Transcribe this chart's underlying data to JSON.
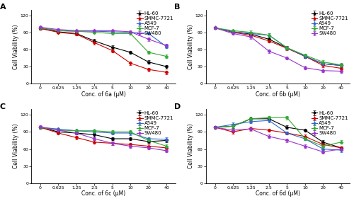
{
  "x_labels": [
    "0",
    "0.625",
    "1.25",
    "2.5",
    "5",
    "10",
    "20",
    "40"
  ],
  "ylim": [
    0,
    130
  ],
  "yticks": [
    0,
    30,
    60,
    90,
    120
  ],
  "cell_lines": [
    "HL-60",
    "SMMC-7721",
    "A549",
    "MCF-7",
    "SW480"
  ],
  "colors": [
    "#000000",
    "#cc0000",
    "#3366cc",
    "#33aa33",
    "#9933cc"
  ],
  "marker": "D",
  "panels": [
    {
      "label": "A",
      "xlabel": "Conc. of 6a (μM)",
      "data": {
        "HL-60": [
          97,
          91,
          88,
          75,
          64,
          55,
          38,
          30
        ],
        "SMMC-7721": [
          97,
          90,
          87,
          72,
          58,
          36,
          25,
          20
        ],
        "A549": [
          98,
          93,
          92,
          92,
          91,
          90,
          88,
          65
        ],
        "MCF-7": [
          98,
          93,
          92,
          90,
          88,
          88,
          55,
          48
        ],
        "SW480": [
          99,
          95,
          93,
          93,
          93,
          91,
          78,
          67
        ]
      },
      "errors": {
        "HL-60": [
          2,
          2,
          3,
          3,
          3,
          3,
          3,
          3
        ],
        "SMMC-7721": [
          2,
          2,
          2,
          3,
          3,
          3,
          3,
          3
        ],
        "A549": [
          2,
          2,
          2,
          2,
          2,
          2,
          2,
          3
        ],
        "MCF-7": [
          2,
          2,
          2,
          2,
          2,
          2,
          3,
          3
        ],
        "SW480": [
          2,
          2,
          2,
          2,
          2,
          2,
          3,
          3
        ]
      }
    },
    {
      "label": "B",
      "xlabel": "Conc. of 6b (μM)",
      "data": {
        "HL-60": [
          98,
          91,
          87,
          78,
          63,
          48,
          35,
          32
        ],
        "SMMC-7721": [
          98,
          90,
          85,
          75,
          62,
          48,
          32,
          27
        ],
        "A549": [
          98,
          91,
          88,
          85,
          63,
          48,
          35,
          32
        ],
        "MCF-7": [
          98,
          93,
          90,
          85,
          63,
          50,
          38,
          33
        ],
        "SW480": [
          98,
          88,
          82,
          57,
          45,
          28,
          23,
          22
        ]
      },
      "errors": {
        "HL-60": [
          2,
          2,
          3,
          4,
          3,
          3,
          3,
          3
        ],
        "SMMC-7721": [
          2,
          2,
          3,
          3,
          3,
          3,
          3,
          3
        ],
        "A549": [
          2,
          2,
          3,
          3,
          3,
          3,
          3,
          3
        ],
        "MCF-7": [
          2,
          2,
          3,
          3,
          3,
          3,
          3,
          3
        ],
        "SW480": [
          2,
          2,
          3,
          3,
          3,
          3,
          3,
          3
        ]
      }
    },
    {
      "label": "C",
      "xlabel": "Conc. of 6c (μM)",
      "data": {
        "HL-60": [
          98,
          90,
          88,
          85,
          78,
          78,
          73,
          75
        ],
        "SMMC-7721": [
          98,
          88,
          80,
          72,
          70,
          68,
          65,
          62
        ],
        "A549": [
          98,
          95,
          92,
          90,
          88,
          88,
          78,
          77
        ],
        "MCF-7": [
          98,
          93,
          92,
          92,
          90,
          90,
          75,
          65
        ],
        "SW480": [
          99,
          93,
          88,
          78,
          70,
          65,
          62,
          57
        ]
      },
      "errors": {
        "HL-60": [
          2,
          2,
          3,
          3,
          3,
          3,
          3,
          3
        ],
        "SMMC-7721": [
          2,
          2,
          3,
          3,
          3,
          3,
          3,
          3
        ],
        "A549": [
          2,
          2,
          3,
          3,
          3,
          4,
          3,
          3
        ],
        "MCF-7": [
          2,
          2,
          3,
          3,
          3,
          3,
          3,
          3
        ],
        "SW480": [
          2,
          2,
          3,
          3,
          3,
          3,
          3,
          3
        ]
      }
    },
    {
      "label": "D",
      "xlabel": "Conc. of 6d (μM)",
      "data": {
        "HL-60": [
          98,
          100,
          113,
          113,
          98,
          93,
          72,
          62
        ],
        "SMMC-7721": [
          98,
          90,
          96,
          93,
          88,
          82,
          68,
          62
        ],
        "A549": [
          98,
          103,
          108,
          110,
          88,
          78,
          60,
          58
        ],
        "MCF-7": [
          98,
          100,
          113,
          115,
          115,
          78,
          65,
          72
        ],
        "SW480": [
          98,
          93,
          95,
          82,
          75,
          65,
          55,
          60
        ]
      },
      "errors": {
        "HL-60": [
          2,
          3,
          3,
          3,
          3,
          3,
          3,
          3
        ],
        "SMMC-7721": [
          2,
          3,
          3,
          3,
          3,
          3,
          3,
          3
        ],
        "A549": [
          2,
          3,
          3,
          3,
          3,
          3,
          3,
          3
        ],
        "MCF-7": [
          2,
          3,
          3,
          3,
          3,
          3,
          3,
          3
        ],
        "SW480": [
          2,
          3,
          3,
          3,
          3,
          3,
          3,
          3
        ]
      }
    }
  ],
  "ylabel": "Cell Viability (%)",
  "background_color": "#ffffff",
  "legend_fontsize": 5.0,
  "axis_fontsize": 5.5,
  "tick_fontsize": 4.5,
  "panel_label_fontsize": 8,
  "linewidth": 0.8,
  "markersize": 2.5,
  "capsize": 1.5,
  "elinewidth": 0.5,
  "markeredgewidth": 0.5
}
